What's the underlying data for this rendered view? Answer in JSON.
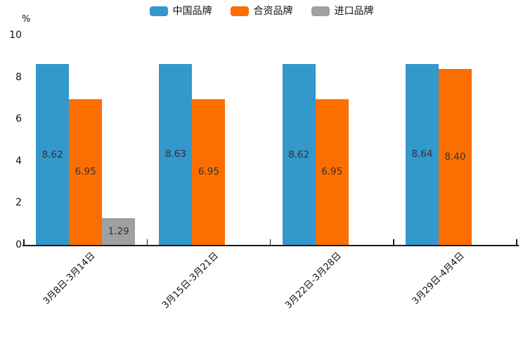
{
  "y_axis": {
    "unit": "%",
    "ticks": [
      0,
      2,
      4,
      6,
      8,
      10
    ]
  },
  "chart_data": {
    "type": "bar",
    "title": "",
    "categories": [
      "3月8日-3月14日",
      "3月15日-3月21日",
      "3月22日-3月28日",
      "3月29日-4月4日"
    ],
    "series": [
      {
        "name": "中国品牌",
        "color": "#3398CC",
        "values": [
          8.62,
          8.63,
          8.62,
          8.64
        ],
        "labels": [
          "8.62",
          "8.63",
          "8.62",
          "8.64"
        ]
      },
      {
        "name": "合资品牌",
        "color": "#FC6E00",
        "values": [
          6.95,
          6.95,
          6.95,
          8.4
        ],
        "labels": [
          "6.95",
          "6.95",
          "6.95",
          "8.40"
        ]
      },
      {
        "name": "进口品牌",
        "color": "#A0A0A0",
        "values": [
          1.29,
          null,
          null,
          null
        ],
        "labels": [
          "1.29",
          null,
          null,
          null
        ]
      }
    ],
    "xlabel": "",
    "ylabel": "%",
    "ylim": [
      0,
      10
    ],
    "grid": false,
    "legend_position": "top",
    "xlabel_rotation_deg": 45,
    "bar_gap_in_group": 0
  }
}
